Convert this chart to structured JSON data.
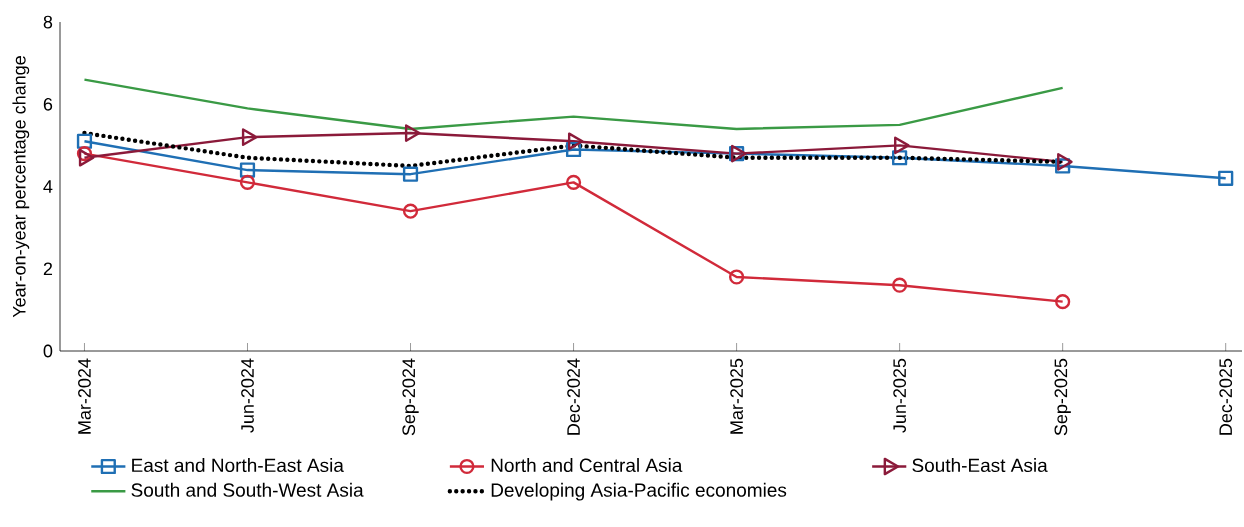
{
  "chart_data": {
    "type": "line",
    "ylabel": "Year-on-year percentage change",
    "categories": [
      "Mar-2024",
      "Jun-2024",
      "Sep-2024",
      "Dec-2024",
      "Mar-2025",
      "Jun-2025",
      "Sep-2025",
      "Dec-2025"
    ],
    "ylim": [
      0,
      8
    ],
    "yticks": [
      0,
      2,
      4,
      6,
      8
    ],
    "grid": false,
    "legend": "bottom",
    "series": [
      {
        "name": "East and North-East Asia",
        "color": "#1f6fb4",
        "marker": "square",
        "line_style": "solid",
        "values": [
          5.1,
          4.4,
          4.3,
          4.9,
          4.8,
          4.7,
          4.5,
          4.2
        ]
      },
      {
        "name": "North and Central Asia",
        "color": "#d12a3a",
        "marker": "circle",
        "line_style": "solid",
        "values": [
          4.8,
          4.1,
          3.4,
          4.1,
          1.8,
          1.6,
          1.2,
          null
        ]
      },
      {
        "name": "South-East Asia",
        "color": "#8b1a3a",
        "marker": "triangle",
        "line_style": "solid",
        "values": [
          4.7,
          5.2,
          5.3,
          5.1,
          4.8,
          5.0,
          4.6,
          null
        ]
      },
      {
        "name": "South and South-West Asia",
        "color": "#3a9a45",
        "marker": "none",
        "line_style": "solid",
        "values": [
          6.6,
          5.9,
          5.4,
          5.7,
          5.4,
          5.5,
          6.4,
          null
        ]
      },
      {
        "name": "Developing Asia-Pacific economies",
        "color": "#000000",
        "marker": "none",
        "line_style": "dotted",
        "values": [
          5.3,
          4.7,
          4.5,
          5.0,
          4.7,
          4.7,
          4.6,
          null
        ]
      }
    ]
  }
}
